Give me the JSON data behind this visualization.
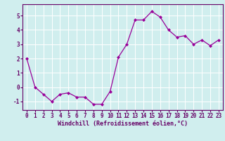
{
  "x": [
    0,
    1,
    2,
    3,
    4,
    5,
    6,
    7,
    8,
    9,
    10,
    11,
    12,
    13,
    14,
    15,
    16,
    17,
    18,
    19,
    20,
    21,
    22,
    23
  ],
  "y": [
    2.0,
    0.0,
    -0.5,
    -1.0,
    -0.5,
    -0.4,
    -0.7,
    -0.7,
    -1.2,
    -1.2,
    -0.3,
    2.1,
    3.0,
    4.7,
    4.7,
    5.3,
    4.9,
    4.0,
    3.5,
    3.6,
    3.0,
    3.3,
    2.9,
    3.3
  ],
  "line_color": "#990099",
  "marker": "D",
  "markersize": 2.0,
  "linewidth": 0.9,
  "bg_color": "#d0eeee",
  "grid_color": "#ffffff",
  "xlabel": "Windchill (Refroidissement éolien,°C)",
  "xlabel_fontsize": 6.0,
  "tick_fontsize": 5.5,
  "xlim": [
    -0.5,
    23.5
  ],
  "ylim": [
    -1.6,
    5.8
  ],
  "yticks": [
    -1,
    0,
    1,
    2,
    3,
    4,
    5
  ],
  "xticks": [
    0,
    1,
    2,
    3,
    4,
    5,
    6,
    7,
    8,
    9,
    10,
    11,
    12,
    13,
    14,
    15,
    16,
    17,
    18,
    19,
    20,
    21,
    22,
    23
  ]
}
